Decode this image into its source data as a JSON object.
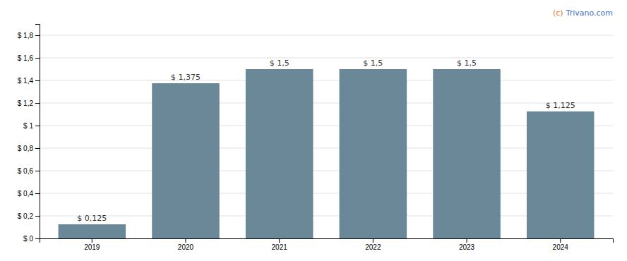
{
  "chart_data": {
    "type": "bar",
    "categories": [
      "2019",
      "2020",
      "2021",
      "2022",
      "2023",
      "2024"
    ],
    "values": [
      0.125,
      1.375,
      1.5,
      1.5,
      1.5,
      1.125
    ],
    "value_labels": [
      "$ 0,125",
      "$ 1,375",
      "$ 1,5",
      "$ 1,5",
      "$ 1,5",
      "$ 1,125"
    ],
    "data_labels": true,
    "color": "#6b8899",
    "ylim": [
      0,
      1.9
    ],
    "yticks": [
      {
        "value": 0,
        "label": "$ 0"
      },
      {
        "value": 0.2,
        "label": "$ 0,2"
      },
      {
        "value": 0.4,
        "label": "$ 0,4"
      },
      {
        "value": 0.6,
        "label": "$ 0,6"
      },
      {
        "value": 0.8,
        "label": "$ 0,8"
      },
      {
        "value": 1.0,
        "label": "$ 1"
      },
      {
        "value": 1.2,
        "label": "$ 1,2"
      },
      {
        "value": 1.4,
        "label": "$ 1,4"
      },
      {
        "value": 1.6,
        "label": "$ 1,6"
      },
      {
        "value": 1.8,
        "label": "$ 1,8"
      }
    ],
    "grid": true,
    "annotations": [
      {
        "text": "(c)",
        "color": "#e07820"
      },
      {
        "text": "Trivano.com",
        "color": "#4472c4"
      }
    ]
  }
}
